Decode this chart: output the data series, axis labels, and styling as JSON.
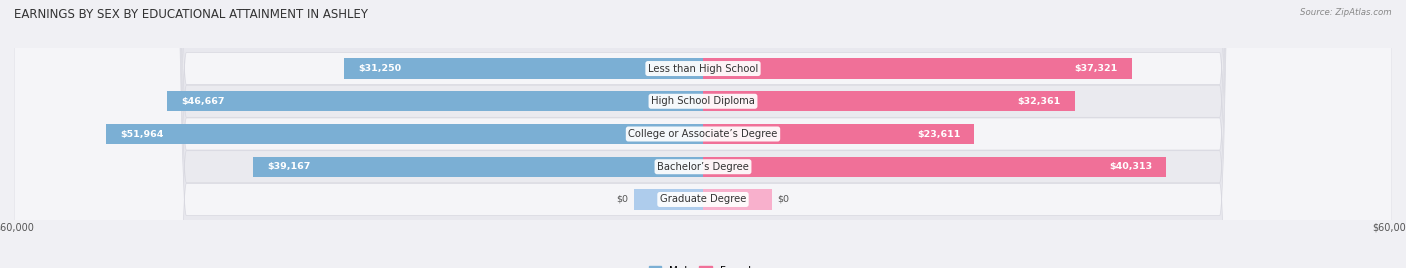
{
  "title": "EARNINGS BY SEX BY EDUCATIONAL ATTAINMENT IN ASHLEY",
  "source": "Source: ZipAtlas.com",
  "categories": [
    "Less than High School",
    "High School Diploma",
    "College or Associate’s Degree",
    "Bachelor’s Degree",
    "Graduate Degree"
  ],
  "male_values": [
    31250,
    46667,
    51964,
    39167,
    0
  ],
  "female_values": [
    37321,
    32361,
    23611,
    40313,
    0
  ],
  "male_color": "#7bafd4",
  "female_color": "#f07098",
  "male_color_light": "#aeccec",
  "female_color_light": "#f8b0cc",
  "max_value": 60000,
  "bar_height": 0.62,
  "row_colors": [
    "#f0f0f4",
    "#e8e8ef"
  ],
  "title_fontsize": 8.5,
  "label_fontsize": 7.2,
  "value_fontsize": 6.8,
  "legend_fontsize": 7.5,
  "axis_label_fontsize": 7
}
